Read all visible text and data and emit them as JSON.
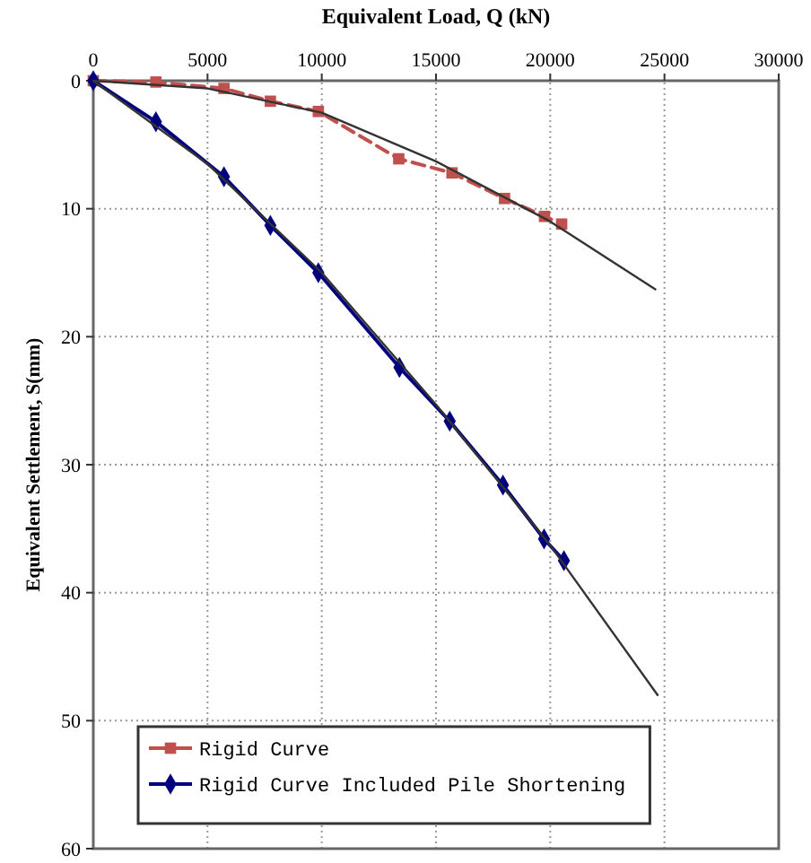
{
  "chart_data": {
    "type": "line",
    "xlabel": "Equivalent Load, Q (kN)",
    "ylabel": "Equivalent Settlement, S(mm)",
    "xlim": [
      0,
      30000
    ],
    "xticks": [
      0,
      5000,
      10000,
      15000,
      20000,
      25000,
      {
        "value": 30000,
        "label": "30000"
      }
    ],
    "ylim": [
      60,
      0
    ],
    "yticks": [
      0,
      10,
      20,
      30,
      40,
      50,
      60
    ],
    "grid": true,
    "legend": "bottom left",
    "series": [
      {
        "name": "Rigid Curve",
        "color": "#c0504d",
        "marker": "square",
        "line_style": "dashed",
        "x": [
          0,
          2740,
          5720,
          7750,
          9850,
          13370,
          15700,
          18000,
          19750,
          20500
        ],
        "values": [
          0,
          0.1,
          0.6,
          1.6,
          2.4,
          6.1,
          7.2,
          9.2,
          10.6,
          11.2
        ]
      },
      {
        "name": "Rigid Curve Included Pile Shortening",
        "color": "#00007f",
        "marker": "diamond",
        "line_style": "solid",
        "x": [
          0,
          2740,
          5720,
          7750,
          9850,
          13400,
          15600,
          17930,
          19730,
          20600
        ],
        "values": [
          0,
          3.2,
          7.5,
          11.3,
          15.0,
          22.4,
          26.6,
          31.6,
          35.8,
          37.5
        ]
      },
      {
        "color": "#333333",
        "marker": "none",
        "line_style": "solid",
        "x": [
          0,
          5000,
          10000,
          15000,
          20000,
          24600
        ],
        "values": [
          0,
          0.6,
          2.5,
          6.3,
          11.0,
          16.3
        ]
      },
      {
        "color": "#333333",
        "marker": "none",
        "line_style": "solid",
        "x": [
          0,
          5000,
          10000,
          15000,
          20000,
          24700
        ],
        "values": [
          0,
          6.5,
          15.0,
          25.3,
          36.3,
          48.0
        ]
      }
    ]
  }
}
